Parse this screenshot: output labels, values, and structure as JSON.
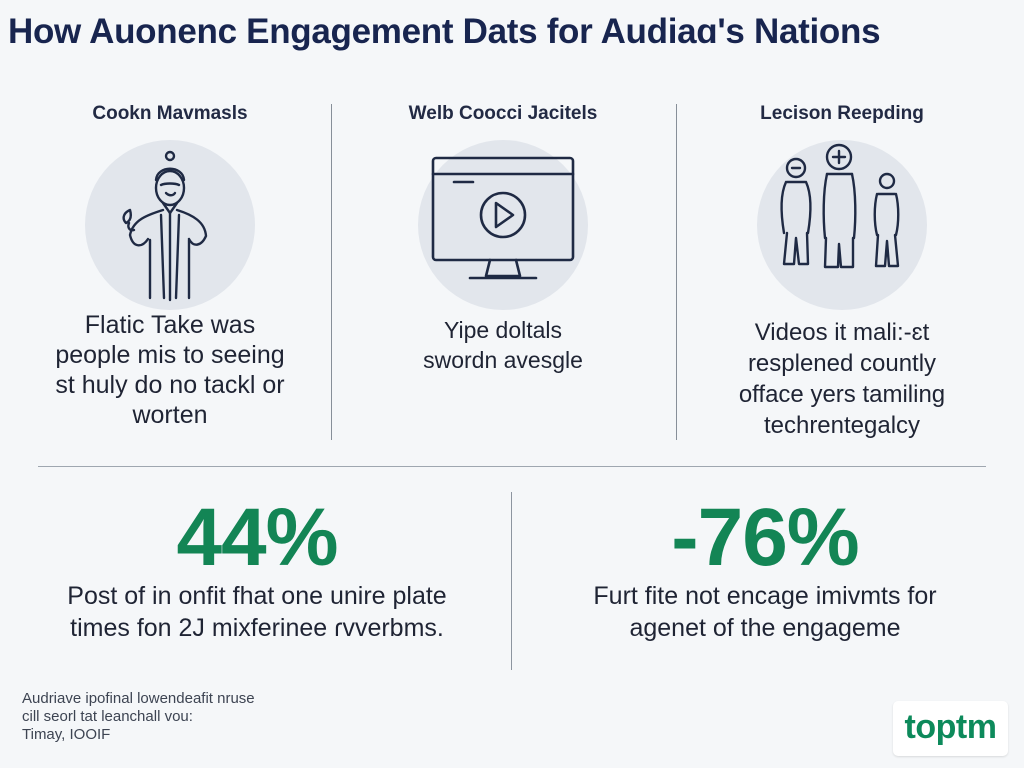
{
  "title": "How Auonenc Engagement Dats for Audiaɑ's Nations",
  "columns": [
    {
      "heading": "Cookn Mavmasls",
      "icon": "person-icon",
      "body_lines": [
        "Flatic Take was",
        "people mis to seeing",
        "st huly do no tackl or",
        "worten"
      ]
    },
    {
      "heading": "Welb Coocci Jacitels",
      "icon": "video-monitor-icon",
      "body_lines": [
        "Yipe doltals",
        "swordn avesgle"
      ]
    },
    {
      "heading": "Lecison Reepding",
      "icon": "group-icon",
      "body_lines": [
        "Videos it mali:-ɛt",
        "resplened countly",
        "offace yers tamiling",
        "techrentegalcy"
      ]
    }
  ],
  "stats": [
    {
      "value": "44%",
      "caption_lines": [
        "Post of in onfit fhat one unire plate",
        "times fon 2J mixferinee ɾvverbms."
      ]
    },
    {
      "value": "-76%",
      "caption_lines": [
        "Furt fite not encage imivmts for",
        "agenet of the engageme"
      ]
    }
  ],
  "footnote_lines": [
    "Audriave ipofinal lowendeafit nruse",
    "cill seorl tat leanchall vou:",
    "Timay, IOOIF"
  ],
  "brand": "toptm",
  "colors": {
    "title": "#18254f",
    "accent": "#138555",
    "background": "#f5f7f9",
    "icon_circle": "#e2e6ec",
    "icon_stroke": "#1f2a44"
  }
}
